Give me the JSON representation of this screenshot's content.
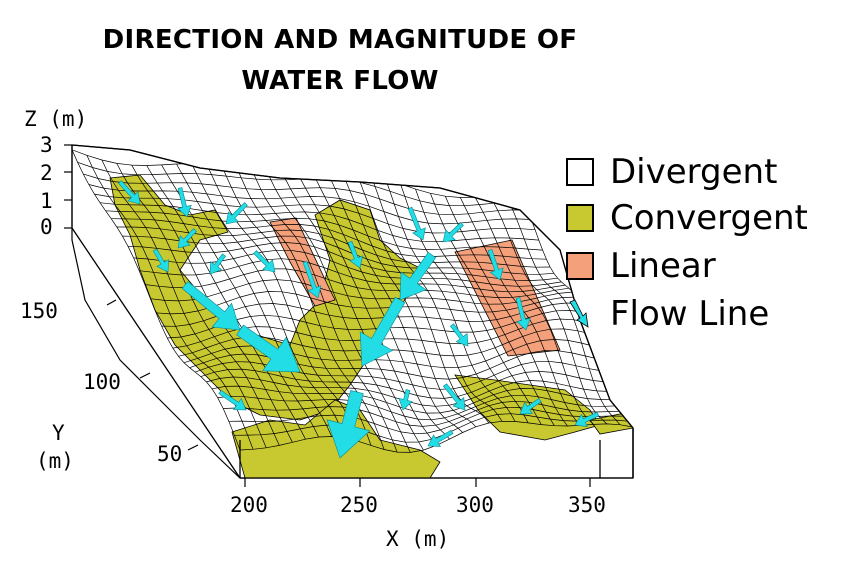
{
  "title": {
    "line1": "DIRECTION AND MAGNITUDE OF",
    "line2": "WATER FLOW"
  },
  "axes": {
    "z_label": "Z (m)",
    "z_ticks": [
      "3",
      "2",
      "1",
      "0"
    ],
    "y_label_line1": "Y",
    "y_label_line2": "(m)",
    "y_ticks": [
      "150",
      "100",
      "50"
    ],
    "x_label": "X (m)",
    "x_ticks": [
      "200",
      "250",
      "300",
      "350"
    ]
  },
  "legend": [
    {
      "label": "Divergent",
      "color": "#ffffff",
      "kind": "swatch"
    },
    {
      "label": "Convergent",
      "color": "#c8c830",
      "kind": "swatch"
    },
    {
      "label": "Linear",
      "color": "#f4a07a",
      "kind": "swatch"
    },
    {
      "label": "Flow Line",
      "color": "#22dde6",
      "kind": "arrow"
    }
  ],
  "colors": {
    "divergent": "#ffffff",
    "convergent": "#c8c830",
    "linear": "#f4a07a",
    "flow_line": "#22dde6",
    "mesh_line": "#000000"
  }
}
